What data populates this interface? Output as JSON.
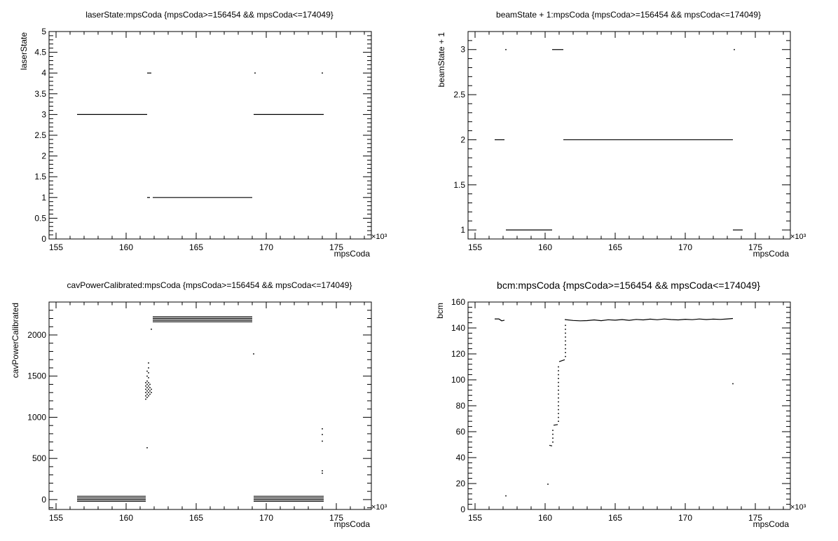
{
  "chart_data": [
    {
      "id": "laser",
      "type": "scatter",
      "title": "laserState:mpsCoda {mpsCoda>=156454 && mpsCoda<=174049}",
      "xlabel": "mpsCoda",
      "ylabel": "laserState",
      "x_multiplier": "×10³",
      "xlim": [
        154.5,
        177.5
      ],
      "ylim": [
        0,
        5
      ],
      "x_ticks": [
        155,
        160,
        165,
        170,
        175
      ],
      "y_ticks": [
        0,
        0.5,
        1,
        1.5,
        2,
        2.5,
        3,
        3.5,
        4,
        4.5,
        5
      ],
      "y_tick_labels": [
        "0",
        "0.5",
        "1",
        "1.5",
        "2",
        "2.5",
        "3",
        "3.5",
        "4",
        "4.5",
        "5"
      ],
      "segments": [
        {
          "x": [
            156.5,
            161.5
          ],
          "y": 3
        },
        {
          "x": [
            161.5,
            161.8
          ],
          "y": 4
        },
        {
          "x": [
            161.5,
            161.7
          ],
          "y": 1
        },
        {
          "x": [
            161.9,
            169.0
          ],
          "y": 1
        },
        {
          "x": [
            169.1,
            174.1
          ],
          "y": 3
        }
      ],
      "points": [
        {
          "x": 169.2,
          "y": 4
        },
        {
          "x": 174.0,
          "y": 4
        }
      ]
    },
    {
      "id": "beam",
      "type": "scatter",
      "title": "beamState + 1:mpsCoda {mpsCoda>=156454 && mpsCoda<=174049}",
      "xlabel": "mpsCoda",
      "ylabel": "beamState + 1",
      "x_multiplier": "×10³",
      "xlim": [
        154.5,
        177.5
      ],
      "ylim": [
        0.9,
        3.2
      ],
      "x_ticks": [
        155,
        160,
        165,
        170,
        175
      ],
      "y_ticks": [
        1,
        1.5,
        2,
        2.5,
        3
      ],
      "y_tick_labels": [
        "1",
        "1.5",
        "2",
        "2.5",
        "3"
      ],
      "segments": [
        {
          "x": [
            156.4,
            157.1
          ],
          "y": 2
        },
        {
          "x": [
            157.2,
            160.5
          ],
          "y": 1
        },
        {
          "x": [
            160.5,
            161.3
          ],
          "y": 3
        },
        {
          "x": [
            161.3,
            173.4
          ],
          "y": 2
        },
        {
          "x": [
            173.4,
            174.1
          ],
          "y": 1
        }
      ],
      "points": [
        {
          "x": 157.2,
          "y": 3
        },
        {
          "x": 173.5,
          "y": 3
        }
      ]
    },
    {
      "id": "cav",
      "type": "scatter",
      "title": "cavPowerCalibrated:mpsCoda {mpsCoda>=156454 && mpsCoda<=174049}",
      "xlabel": "mpsCoda",
      "ylabel": "cavPowerCalibrated",
      "x_multiplier": "×10³",
      "xlim": [
        154.5,
        177.5
      ],
      "ylim": [
        -120,
        2400
      ],
      "x_ticks": [
        155,
        160,
        165,
        170,
        175
      ],
      "y_ticks": [
        0,
        500,
        1000,
        1500,
        2000
      ],
      "y_tick_labels": [
        "0",
        "500",
        "1000",
        "1500",
        "2000"
      ],
      "segments": [
        {
          "x": [
            156.5,
            161.4
          ],
          "y": 40
        },
        {
          "x": [
            156.5,
            161.4
          ],
          "y": 20
        },
        {
          "x": [
            156.5,
            161.4
          ],
          "y": 0
        },
        {
          "x": [
            156.5,
            161.4
          ],
          "y": -20
        },
        {
          "x": [
            161.9,
            169.0
          ],
          "y": 2220
        },
        {
          "x": [
            161.9,
            169.0
          ],
          "y": 2200
        },
        {
          "x": [
            161.9,
            169.0
          ],
          "y": 2180
        },
        {
          "x": [
            161.9,
            169.0
          ],
          "y": 2160
        },
        {
          "x": [
            169.1,
            174.1
          ],
          "y": 40
        },
        {
          "x": [
            169.1,
            174.1
          ],
          "y": 20
        },
        {
          "x": [
            169.1,
            174.1
          ],
          "y": 0
        },
        {
          "x": [
            169.1,
            174.1
          ],
          "y": -20
        }
      ],
      "points": [
        {
          "x": 161.5,
          "y": 630
        },
        {
          "x": 161.4,
          "y": 1220
        },
        {
          "x": 161.4,
          "y": 1260
        },
        {
          "x": 161.4,
          "y": 1300
        },
        {
          "x": 161.4,
          "y": 1340
        },
        {
          "x": 161.4,
          "y": 1380
        },
        {
          "x": 161.4,
          "y": 1420
        },
        {
          "x": 161.5,
          "y": 1240
        },
        {
          "x": 161.5,
          "y": 1280
        },
        {
          "x": 161.5,
          "y": 1320
        },
        {
          "x": 161.5,
          "y": 1360
        },
        {
          "x": 161.5,
          "y": 1400
        },
        {
          "x": 161.5,
          "y": 1440
        },
        {
          "x": 161.5,
          "y": 1500
        },
        {
          "x": 161.5,
          "y": 1560
        },
        {
          "x": 161.6,
          "y": 1260
        },
        {
          "x": 161.6,
          "y": 1300
        },
        {
          "x": 161.6,
          "y": 1340
        },
        {
          "x": 161.6,
          "y": 1380
        },
        {
          "x": 161.6,
          "y": 1420
        },
        {
          "x": 161.6,
          "y": 1480
        },
        {
          "x": 161.6,
          "y": 1540
        },
        {
          "x": 161.6,
          "y": 1600
        },
        {
          "x": 161.6,
          "y": 1660
        },
        {
          "x": 161.7,
          "y": 1280
        },
        {
          "x": 161.7,
          "y": 1320
        },
        {
          "x": 161.7,
          "y": 1360
        },
        {
          "x": 161.7,
          "y": 1400
        },
        {
          "x": 161.8,
          "y": 1300
        },
        {
          "x": 161.8,
          "y": 1340
        },
        {
          "x": 161.8,
          "y": 2070
        },
        {
          "x": 169.1,
          "y": 1770
        },
        {
          "x": 174.0,
          "y": 320
        },
        {
          "x": 174.0,
          "y": 350
        },
        {
          "x": 174.0,
          "y": 710
        },
        {
          "x": 174.0,
          "y": 790
        },
        {
          "x": 174.0,
          "y": 860
        }
      ]
    },
    {
      "id": "bcm",
      "type": "scatter",
      "title": "bcm:mpsCoda {mpsCoda>=156454 && mpsCoda<=174049}",
      "xlabel": "mpsCoda",
      "ylabel": "bcm",
      "x_multiplier": "×10³",
      "xlim": [
        154.5,
        177.5
      ],
      "ylim": [
        0,
        160
      ],
      "x_ticks": [
        155,
        160,
        165,
        170,
        175
      ],
      "y_ticks": [
        0,
        20,
        40,
        60,
        80,
        100,
        120,
        140,
        160
      ],
      "y_tick_labels": [
        "0",
        "20",
        "40",
        "60",
        "80",
        "100",
        "120",
        "140",
        "160"
      ],
      "lines": [
        {
          "x": [
            156.4,
            156.7,
            156.9,
            157.1
          ],
          "y": [
            147,
            147,
            145.5,
            146
          ]
        },
        {
          "x": [
            160.3,
            160.5
          ],
          "y": [
            49.5,
            49
          ]
        },
        {
          "x": [
            160.6,
            160.9
          ],
          "y": [
            65,
            65.5
          ]
        },
        {
          "x": [
            161.0,
            161.4
          ],
          "y": [
            114,
            115.5
          ]
        },
        {
          "x": [
            161.4,
            162.0,
            162.5,
            163.0,
            163.5,
            164.0,
            164.5,
            165.0,
            165.5,
            166.0,
            166.5,
            167.0,
            167.5,
            168.0,
            168.5,
            169.0,
            169.5,
            170.0,
            170.5,
            171.0,
            171.5,
            172.0,
            172.5,
            173.0,
            173.4
          ],
          "y": [
            146.5,
            145.8,
            145.5,
            145.7,
            146.2,
            145.6,
            146.3,
            146,
            146.5,
            145.9,
            146.6,
            146.2,
            146.8,
            146.3,
            146.9,
            146.5,
            146.2,
            146.7,
            146.4,
            146.9,
            146.5,
            146.8,
            146.6,
            147,
            147.3
          ]
        }
      ],
      "points": [
        {
          "x": 157.2,
          "y": 10.5
        },
        {
          "x": 160.2,
          "y": 19.5
        },
        {
          "x": 173.4,
          "y": 97
        },
        {
          "x": 160.55,
          "y": 52
        },
        {
          "x": 160.55,
          "y": 55
        },
        {
          "x": 160.55,
          "y": 58
        },
        {
          "x": 160.55,
          "y": 61
        },
        {
          "x": 160.95,
          "y": 68
        },
        {
          "x": 160.95,
          "y": 71
        },
        {
          "x": 160.95,
          "y": 74
        },
        {
          "x": 160.95,
          "y": 77
        },
        {
          "x": 160.95,
          "y": 80
        },
        {
          "x": 160.95,
          "y": 83
        },
        {
          "x": 160.95,
          "y": 86
        },
        {
          "x": 160.95,
          "y": 89
        },
        {
          "x": 160.95,
          "y": 92
        },
        {
          "x": 160.95,
          "y": 95
        },
        {
          "x": 160.95,
          "y": 98
        },
        {
          "x": 160.95,
          "y": 101
        },
        {
          "x": 160.95,
          "y": 104
        },
        {
          "x": 160.95,
          "y": 107
        },
        {
          "x": 160.95,
          "y": 110
        },
        {
          "x": 161.45,
          "y": 118
        },
        {
          "x": 161.45,
          "y": 121
        },
        {
          "x": 161.45,
          "y": 124
        },
        {
          "x": 161.45,
          "y": 127
        },
        {
          "x": 161.45,
          "y": 130
        },
        {
          "x": 161.45,
          "y": 133
        },
        {
          "x": 161.45,
          "y": 136
        },
        {
          "x": 161.45,
          "y": 139
        },
        {
          "x": 161.45,
          "y": 142
        }
      ]
    }
  ]
}
